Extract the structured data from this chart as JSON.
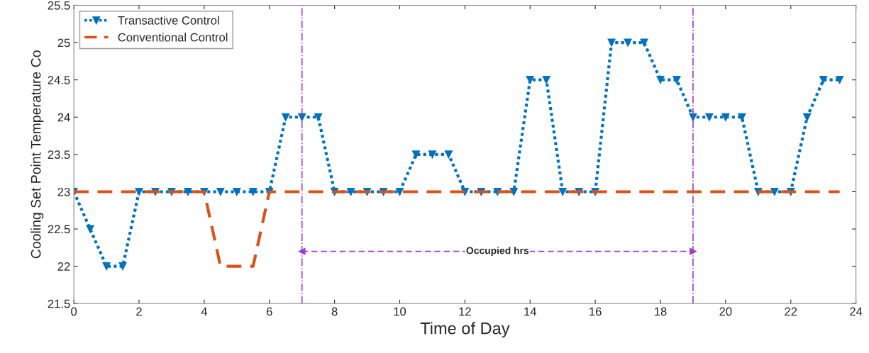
{
  "chart_data": {
    "type": "line",
    "xlabel": "Time of Day",
    "ylabel": "Cooling Set Point Temperature Co",
    "x": [
      0,
      0.5,
      1,
      1.5,
      2,
      2.5,
      3,
      3.5,
      4,
      4.5,
      5,
      5.5,
      6,
      6.5,
      7,
      7.5,
      8,
      8.5,
      9,
      9.5,
      10,
      10.5,
      11,
      11.5,
      12,
      12.5,
      13,
      13.5,
      14,
      14.5,
      15,
      15.5,
      16,
      16.5,
      17,
      17.5,
      18,
      18.5,
      19,
      19.5,
      20,
      20.5,
      21,
      21.5,
      22,
      22.5,
      23,
      23.5
    ],
    "series": [
      {
        "name": "Transactive Control",
        "color": "#0072bd",
        "marker": "triangle",
        "line_style": "dotted",
        "values": [
          23,
          22.5,
          22,
          22,
          23,
          23,
          23,
          23,
          23,
          23,
          23,
          23,
          23,
          24,
          24,
          24,
          23,
          23,
          23,
          23,
          23,
          23.5,
          23.5,
          23.5,
          23,
          23,
          23,
          23,
          24.5,
          24.5,
          23,
          23,
          23,
          25,
          25,
          25,
          24.5,
          24.5,
          24,
          24,
          24,
          24,
          23,
          23,
          23,
          24,
          24.5,
          24.5
        ]
      },
      {
        "type": "line",
        "x": [
          7,
          19
        ],
        "color": "#a03cc8",
        "marker": "triangle",
        "line_style": "dashed",
        "values": [
          22.2,
          22.2
        ]
      },
      {
        "name": "Conventional Control",
        "color": "#d95319",
        "marker": "none",
        "line_style": "dashed",
        "values": [
          23,
          23,
          23,
          23,
          23,
          23,
          23,
          23,
          23,
          22,
          22,
          22,
          23,
          23,
          23,
          23,
          23,
          23,
          23,
          23,
          23,
          23,
          23,
          23,
          23,
          23,
          23,
          23,
          23,
          23,
          23,
          23,
          23,
          23,
          23,
          23,
          23,
          23,
          23,
          23,
          23,
          23,
          23,
          23,
          23,
          23,
          23,
          23
        ]
      }
    ],
    "ref_lines": [
      {
        "axis": "x",
        "value": 7,
        "color": "#a03cc8",
        "line_style": "dashdot"
      },
      {
        "axis": "x",
        "value": 19,
        "color": "#a03cc8",
        "line_style": "dashdot"
      }
    ],
    "annotations": [
      {
        "text": "Occupied hrs",
        "x": 13,
        "y": 22.2
      }
    ],
    "xlim": [
      0,
      24
    ],
    "ylim": [
      21.5,
      25.5
    ],
    "xticks": [
      0,
      2,
      4,
      6,
      8,
      10,
      12,
      14,
      16,
      18,
      20,
      22,
      24
    ],
    "yticks": [
      21.5,
      22,
      22.5,
      23,
      23.5,
      24,
      24.5,
      25,
      25.5
    ],
    "grid": false,
    "legend": "top left"
  }
}
